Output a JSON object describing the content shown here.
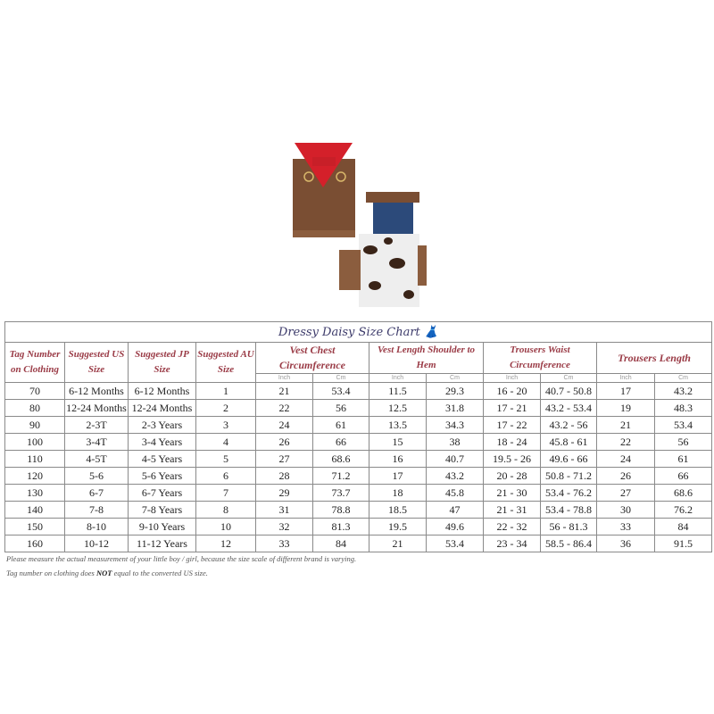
{
  "title": "Dressy Daisy Size Chart",
  "title_icon": "dress-icon",
  "headers": [
    "Tag Number on Clothing",
    "Suggested US Size",
    "Suggested JP Size",
    "Suggested AU Size",
    "Vest Chest Circumference",
    "Vest Length Shoulder to Hem",
    "Trousers Waist Circumference",
    "Trousers Length"
  ],
  "units": {
    "inch": "Inch",
    "cm": "Cm"
  },
  "rows": [
    [
      "70",
      "6-12 Months",
      "6-12 Months",
      "1",
      "21",
      "53.4",
      "11.5",
      "29.3",
      "16 - 20",
      "40.7 - 50.8",
      "17",
      "43.2"
    ],
    [
      "80",
      "12-24 Months",
      "12-24 Months",
      "2",
      "22",
      "56",
      "12.5",
      "31.8",
      "17 - 21",
      "43.2 - 53.4",
      "19",
      "48.3"
    ],
    [
      "90",
      "2-3T",
      "2-3 Years",
      "3",
      "24",
      "61",
      "13.5",
      "34.3",
      "17 - 22",
      "43.2 - 56",
      "21",
      "53.4"
    ],
    [
      "100",
      "3-4T",
      "3-4 Years",
      "4",
      "26",
      "66",
      "15",
      "38",
      "18 - 24",
      "45.8 - 61",
      "22",
      "56"
    ],
    [
      "110",
      "4-5T",
      "4-5 Years",
      "5",
      "27",
      "68.6",
      "16",
      "40.7",
      "19.5 - 26",
      "49.6 - 66",
      "24",
      "61"
    ],
    [
      "120",
      "5-6",
      "5-6 Years",
      "6",
      "28",
      "71.2",
      "17",
      "43.2",
      "20 - 28",
      "50.8 - 71.2",
      "26",
      "66"
    ],
    [
      "130",
      "6-7",
      "6-7 Years",
      "7",
      "29",
      "73.7",
      "18",
      "45.8",
      "21 - 30",
      "53.4 - 76.2",
      "27",
      "68.6"
    ],
    [
      "140",
      "7-8",
      "7-8 Years",
      "8",
      "31",
      "78.8",
      "18.5",
      "47",
      "21 - 31",
      "53.4 - 78.8",
      "30",
      "76.2"
    ],
    [
      "150",
      "8-10",
      "9-10 Years",
      "10",
      "32",
      "81.3",
      "19.5",
      "49.6",
      "22 - 32",
      "56 - 81.3",
      "33",
      "84"
    ],
    [
      "160",
      "10-12",
      "11-12 Years",
      "12",
      "33",
      "84",
      "21",
      "53.4",
      "23 - 34",
      "58.5 - 86.4",
      "36",
      "91.5"
    ]
  ],
  "notes": {
    "line1": "Please measure the actual measurement of your little boy / girl, because the size scale of different brand is varying.",
    "line2_pre": "Tag number on clothing does ",
    "line2_bold": "NOT",
    "line2_post": " equal to the converted US size."
  },
  "colors": {
    "header_text": "#9a3b46",
    "title_text": "#3c3a6a"
  }
}
